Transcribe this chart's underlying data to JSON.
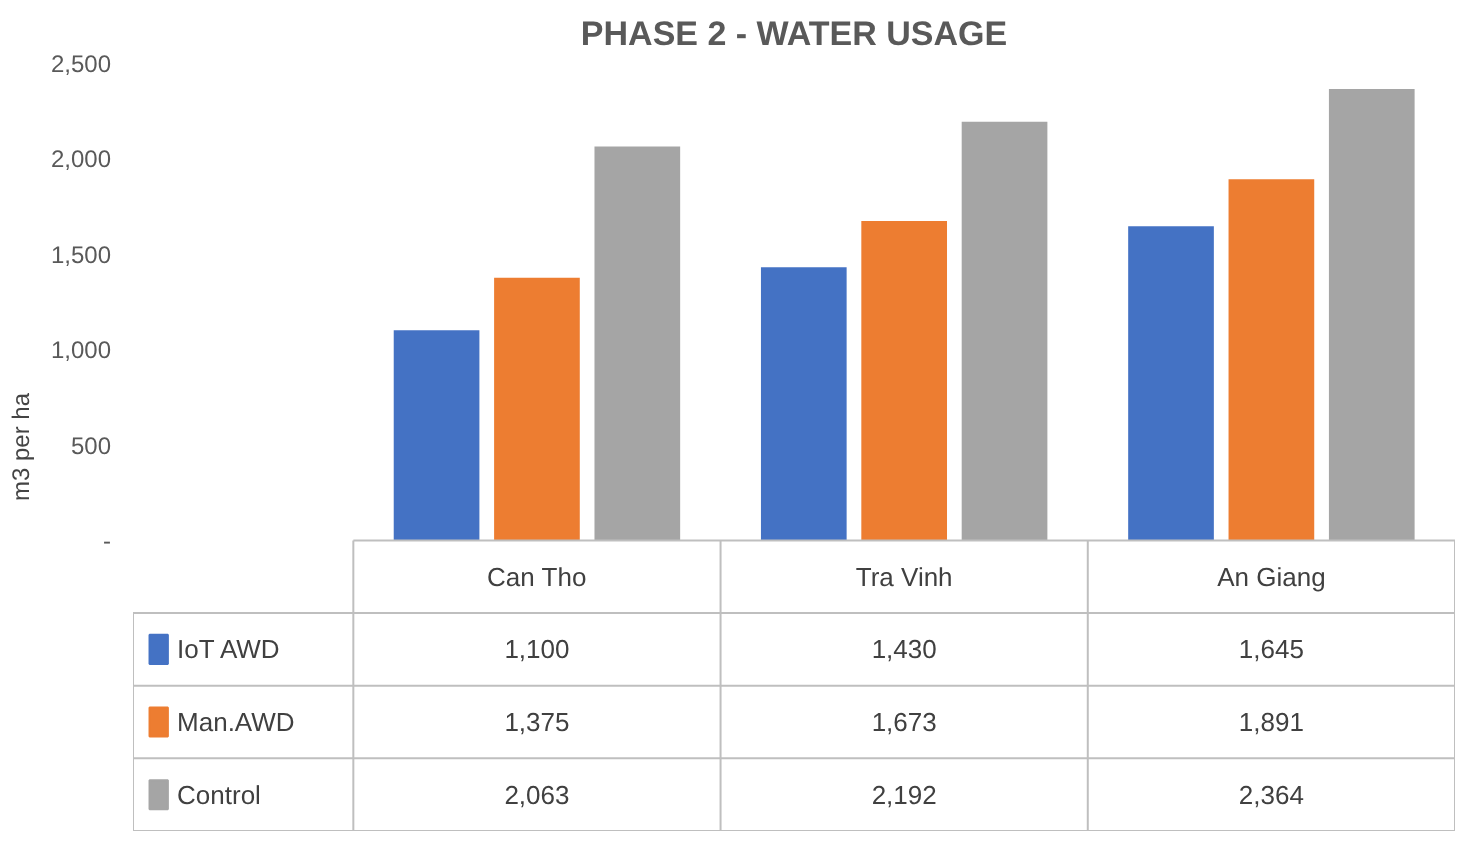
{
  "chart_data": {
    "type": "bar",
    "title": "PHASE 2 - WATER USAGE",
    "ylabel": "m3 per ha",
    "categories": [
      "Can Tho",
      "Tra Vinh",
      "An Giang"
    ],
    "series": [
      {
        "name": "IoT AWD",
        "color": "#4472c4",
        "values": [
          1100,
          1430,
          1645
        ],
        "value_labels": [
          "1,100",
          "1,430",
          "1,645"
        ]
      },
      {
        "name": "Man.AWD",
        "color": "#ed7d31",
        "values": [
          1375,
          1673,
          1891
        ],
        "value_labels": [
          "1,375",
          "1,673",
          "1,891"
        ]
      },
      {
        "name": "Control",
        "color": "#a5a5a5",
        "values": [
          2063,
          2192,
          2364
        ],
        "value_labels": [
          "2,063",
          "2,192",
          "2,364"
        ]
      }
    ],
    "ylim": [
      0,
      2500
    ],
    "yticks": [
      {
        "value": 0,
        "label": "-"
      },
      {
        "value": 500,
        "label": "500"
      },
      {
        "value": 1000,
        "label": "1,000"
      },
      {
        "value": 1500,
        "label": "1,500"
      },
      {
        "value": 2000,
        "label": "2,000"
      },
      {
        "value": 2500,
        "label": "2,500"
      }
    ],
    "legend": "bottom"
  }
}
